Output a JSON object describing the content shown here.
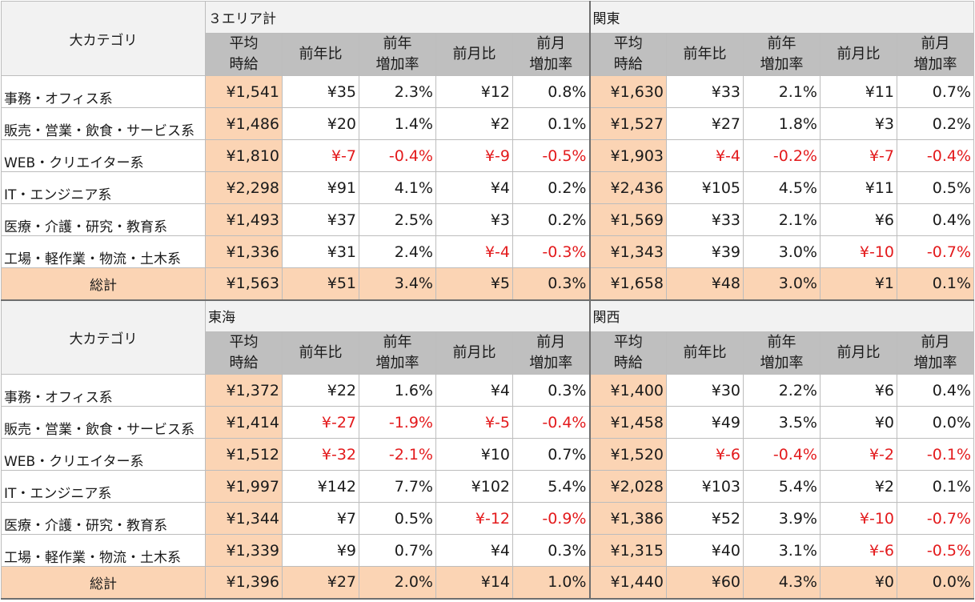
{
  "sections": [
    {
      "category_header": "大カテゴリ",
      "regions": [
        "３エリア計",
        "関東"
      ],
      "columns": [
        [
          "平均",
          "時給"
        ],
        [
          "前年比"
        ],
        [
          "前年",
          "増加率"
        ],
        [
          "前月比"
        ],
        [
          "前月",
          "増加率"
        ]
      ],
      "rows": [
        {
          "label": "事務・オフィス系",
          "cells": [
            [
              "¥1,541",
              "¥35",
              "2.3%",
              "¥12",
              "0.8%"
            ],
            [
              "¥1,630",
              "¥33",
              "2.1%",
              "¥11",
              "0.7%"
            ]
          ]
        },
        {
          "label": "販売・営業・飲食・サービス系",
          "cells": [
            [
              "¥1,486",
              "¥20",
              "1.4%",
              "¥2",
              "0.1%"
            ],
            [
              "¥1,527",
              "¥27",
              "1.8%",
              "¥3",
              "0.2%"
            ]
          ]
        },
        {
          "label": "WEB・クリエイター系",
          "cells": [
            [
              "¥1,810",
              "¥-7",
              "-0.4%",
              "¥-9",
              "-0.5%"
            ],
            [
              "¥1,903",
              "¥-4",
              "-0.2%",
              "¥-7",
              "-0.4%"
            ]
          ]
        },
        {
          "label": "IT・エンジニア系",
          "cells": [
            [
              "¥2,298",
              "¥91",
              "4.1%",
              "¥4",
              "0.2%"
            ],
            [
              "¥2,436",
              "¥105",
              "4.5%",
              "¥11",
              "0.5%"
            ]
          ]
        },
        {
          "label": "医療・介護・研究・教育系",
          "cells": [
            [
              "¥1,493",
              "¥37",
              "2.5%",
              "¥3",
              "0.2%"
            ],
            [
              "¥1,569",
              "¥33",
              "2.1%",
              "¥6",
              "0.4%"
            ]
          ]
        },
        {
          "label": "工場・軽作業・物流・土木系",
          "cells": [
            [
              "¥1,336",
              "¥31",
              "2.4%",
              "¥-4",
              "-0.3%"
            ],
            [
              "¥1,343",
              "¥39",
              "3.0%",
              "¥-10",
              "-0.7%"
            ]
          ]
        }
      ],
      "total": {
        "label": "総計",
        "cells": [
          [
            "¥1,563",
            "¥51",
            "3.4%",
            "¥5",
            "0.3%"
          ],
          [
            "¥1,658",
            "¥48",
            "3.0%",
            "¥1",
            "0.1%"
          ]
        ]
      }
    },
    {
      "category_header": "大カテゴリ",
      "regions": [
        "東海",
        "関西"
      ],
      "columns": [
        [
          "平均",
          "時給"
        ],
        [
          "前年比"
        ],
        [
          "前年",
          "増加率"
        ],
        [
          "前月比"
        ],
        [
          "前月",
          "増加率"
        ]
      ],
      "rows": [
        {
          "label": "事務・オフィス系",
          "cells": [
            [
              "¥1,372",
              "¥22",
              "1.6%",
              "¥4",
              "0.3%"
            ],
            [
              "¥1,400",
              "¥30",
              "2.2%",
              "¥6",
              "0.4%"
            ]
          ]
        },
        {
          "label": "販売・営業・飲食・サービス系",
          "cells": [
            [
              "¥1,414",
              "¥-27",
              "-1.9%",
              "¥-5",
              "-0.4%"
            ],
            [
              "¥1,458",
              "¥49",
              "3.5%",
              "¥0",
              "0.0%"
            ]
          ]
        },
        {
          "label": "WEB・クリエイター系",
          "cells": [
            [
              "¥1,512",
              "¥-32",
              "-2.1%",
              "¥10",
              "0.7%"
            ],
            [
              "¥1,520",
              "¥-6",
              "-0.4%",
              "¥-2",
              "-0.1%"
            ]
          ]
        },
        {
          "label": "IT・エンジニア系",
          "cells": [
            [
              "¥1,997",
              "¥142",
              "7.7%",
              "¥102",
              "5.4%"
            ],
            [
              "¥2,028",
              "¥103",
              "5.4%",
              "¥2",
              "0.1%"
            ]
          ]
        },
        {
          "label": "医療・介護・研究・教育系",
          "cells": [
            [
              "¥1,344",
              "¥7",
              "0.5%",
              "¥-12",
              "-0.9%"
            ],
            [
              "¥1,386",
              "¥52",
              "3.9%",
              "¥-10",
              "-0.7%"
            ]
          ]
        },
        {
          "label": "工場・軽作業・物流・土木系",
          "cells": [
            [
              "¥1,339",
              "¥9",
              "0.7%",
              "¥4",
              "0.3%"
            ],
            [
              "¥1,315",
              "¥40",
              "3.1%",
              "¥-6",
              "-0.5%"
            ]
          ]
        }
      ],
      "total": {
        "label": "総計",
        "cells": [
          [
            "¥1,396",
            "¥27",
            "2.0%",
            "¥14",
            "1.0%"
          ],
          [
            "¥1,440",
            "¥60",
            "4.3%",
            "¥0",
            "0.0%"
          ]
        ]
      }
    }
  ]
}
